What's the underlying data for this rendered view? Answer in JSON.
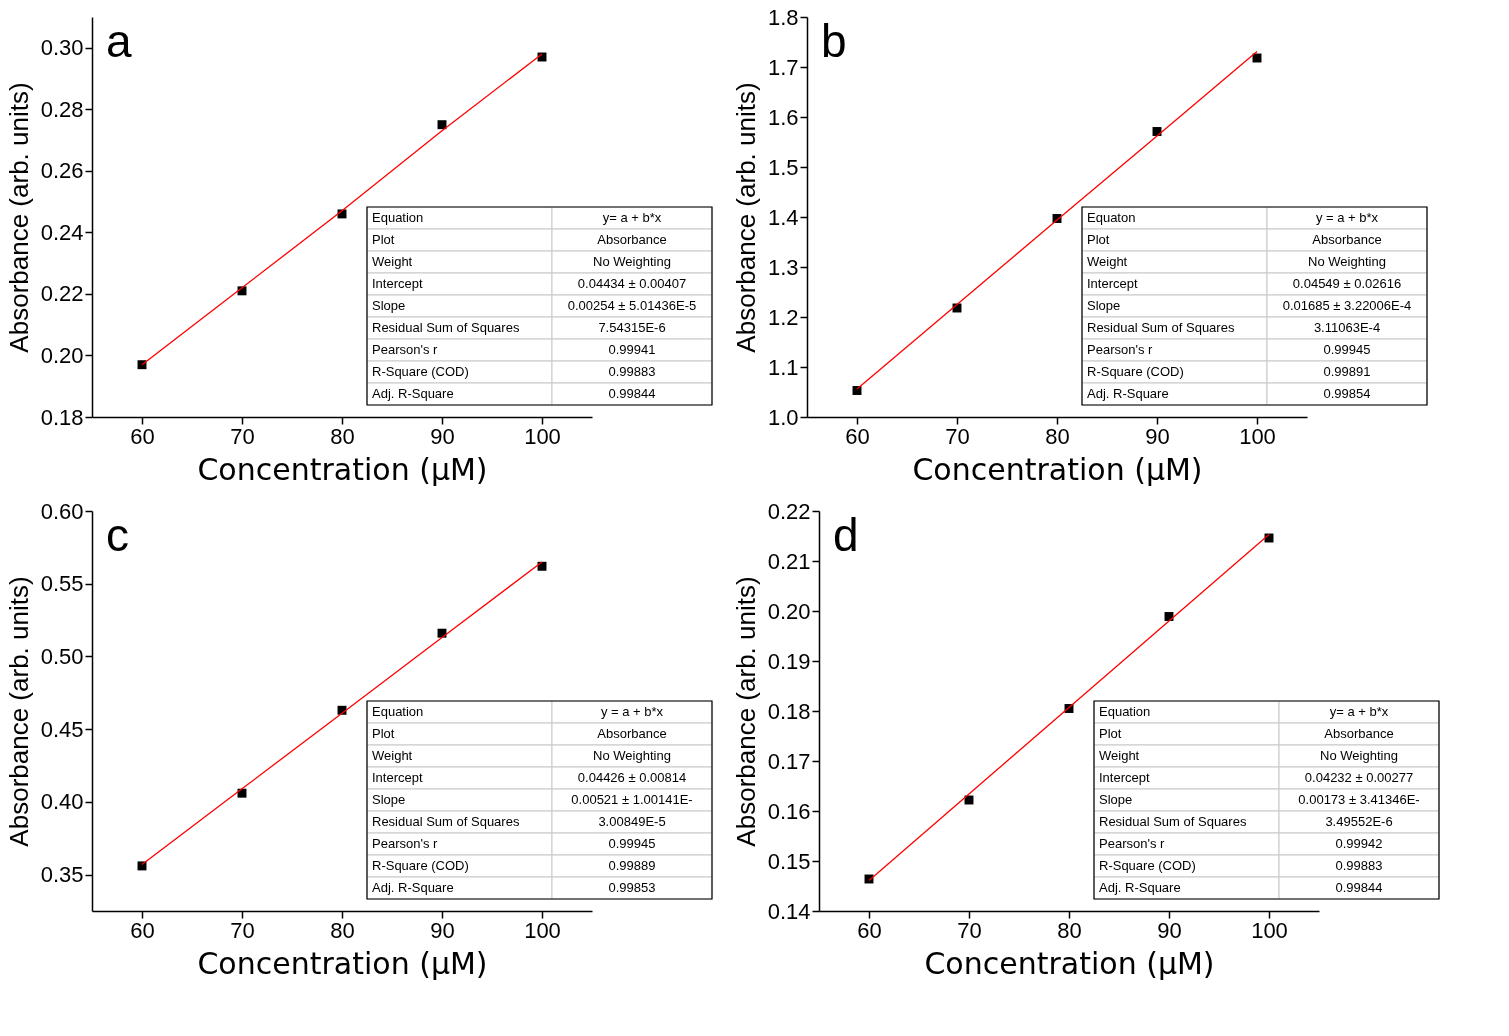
{
  "chart_data": [
    {
      "type": "scatter",
      "title": "a",
      "xlabel": "Concentration (μM)",
      "ylabel": "Absorbance (arb. units)",
      "x": [
        60,
        70,
        80,
        90,
        100
      ],
      "series": [
        {
          "color": "#000000",
          "marker": "square",
          "values": [
            0.197,
            0.221,
            0.246,
            0.275,
            0.297
          ]
        },
        {
          "type": "line",
          "color": "#ff0000",
          "marker": "none",
          "values": [
            0.197,
            0.222,
            0.247,
            0.273,
            0.298
          ]
        }
      ],
      "xlim": [
        55,
        105
      ],
      "xticks": [
        60,
        70,
        80,
        90,
        100
      ],
      "ylim": [
        0.18,
        0.31
      ],
      "yticks": [
        0.18,
        {
          "value": 0.2,
          "label": "0.20"
        },
        0.22,
        0.24,
        0.26,
        0.28,
        {
          "value": 0.3,
          "label": "0.30"
        }
      ],
      "annotations": [
        "Equation",
        "y= a + b*x",
        "Plot",
        "Absorbance",
        "Weight",
        "No Weighting",
        "Intercept",
        "0.04434 ± 0.00407",
        "Slope",
        "0.00254 ± 5.01436E-5",
        "Residual Sum of Squares",
        "7.54315E-6",
        "Pearson's r",
        "0.99941",
        "R-Square (COD)",
        "0.99883",
        "Adj. R-Square",
        "0.99844"
      ]
    },
    {
      "type": "scatter",
      "title": "b",
      "xlabel": "Concentration (μM)",
      "ylabel": "Absorbance (arb. units)",
      "x": [
        60,
        70,
        80,
        90,
        100
      ],
      "series": [
        {
          "color": "#000000",
          "marker": "square",
          "values": [
            1.053,
            1.218,
            1.397,
            1.571,
            1.718
          ]
        },
        {
          "type": "line",
          "color": "#ff0000",
          "marker": "none",
          "values": [
            1.056,
            1.225,
            1.394,
            1.562,
            1.731
          ]
        }
      ],
      "xlim": [
        55,
        105
      ],
      "xticks": [
        60,
        70,
        80,
        90,
        100
      ],
      "ylim": [
        1.0,
        1.8
      ],
      "yticks": [
        {
          "value": 1.0,
          "label": "1.0"
        },
        1.1,
        1.2,
        1.3,
        1.4,
        1.5,
        1.6,
        1.7,
        1.8
      ],
      "annotations": [
        "Equaton",
        "y = a + b*x",
        "Plot",
        "Absorbance",
        "Weight",
        "No Weighting",
        "Intercept",
        "0.04549 ± 0.02616",
        "Slope",
        "0.01685 ± 3.22006E-4",
        "Residual Sum of Squares",
        "3.11063E-4",
        "Pearson's r",
        "0.99945",
        "R-Square (COD)",
        "0.99891",
        "Adj. R-Square",
        "0.99854"
      ]
    },
    {
      "type": "scatter",
      "title": "c",
      "xlabel": "Concentration (μM)",
      "ylabel": "Absorbance (arb. units)",
      "x": [
        60,
        70,
        80,
        90,
        100
      ],
      "series": [
        {
          "color": "#000000",
          "marker": "square",
          "values": [
            0.356,
            0.406,
            0.463,
            0.516,
            0.562
          ]
        },
        {
          "type": "line",
          "color": "#ff0000",
          "marker": "none",
          "values": [
            0.357,
            0.409,
            0.461,
            0.513,
            0.565
          ]
        }
      ],
      "xlim": [
        55,
        105
      ],
      "xticks": [
        60,
        70,
        80,
        90,
        100
      ],
      "ylim": [
        0.325,
        0.6
      ],
      "yticks": [
        0.35,
        {
          "value": 0.4,
          "label": "0.40"
        },
        0.45,
        {
          "value": 0.5,
          "label": "0.50"
        },
        0.55,
        {
          "value": 0.6,
          "label": "0.60"
        }
      ],
      "annotations": [
        "Equation",
        "y = a + b*x",
        "Plot",
        "Absorbance",
        "Weight",
        "No Weighting",
        "Intercept",
        "0.04426 ± 0.00814",
        "Slope",
        "0.00521 ± 1.00141E-",
        "Residual Sum of Squares",
        "3.00849E-5",
        "Pearson's r",
        "0.99945",
        "R-Square (COD)",
        "0.99889",
        "Adj. R-Square",
        "0.99853"
      ]
    },
    {
      "type": "scatter",
      "title": "d",
      "xlabel": "Concentration (μM)",
      "ylabel": "Absorbance (arb. units)",
      "x": [
        60,
        70,
        80,
        90,
        100
      ],
      "series": [
        {
          "color": "#000000",
          "marker": "square",
          "values": [
            0.1464,
            0.1622,
            0.1805,
            0.1989,
            0.2146
          ]
        },
        {
          "type": "line",
          "color": "#ff0000",
          "marker": "none",
          "values": [
            0.1461,
            0.1634,
            0.1807,
            0.198,
            0.2153
          ]
        }
      ],
      "xlim": [
        55,
        105
      ],
      "xticks": [
        60,
        70,
        80,
        90,
        100
      ],
      "ylim": [
        0.14,
        0.22
      ],
      "yticks": [
        0.14,
        0.15,
        0.16,
        0.17,
        0.18,
        0.19,
        {
          "value": 0.2,
          "label": "0.20"
        },
        0.21,
        0.22
      ],
      "annotations": [
        "Equation",
        "y= a + b*x",
        "Plot",
        "Absorbance",
        "Weight",
        "No Weighting",
        "Intercept",
        "0.04232 ± 0.00277",
        "Slope",
        "0.00173 ± 3.41346E-",
        "Residual Sum of Squares",
        "3.49552E-6",
        "Pearson's r",
        "0.99942",
        "R-Square (COD)",
        "0.99883",
        "Adj. R-Square",
        "0.99844"
      ]
    }
  ]
}
